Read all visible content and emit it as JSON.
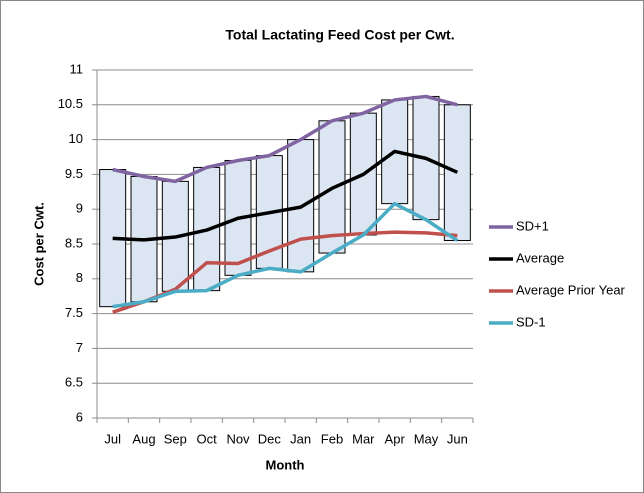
{
  "chart_data": {
    "type": "line-band",
    "title": "Total Lactating Feed Cost per Cwt.",
    "x_label": "Month",
    "y_label": "Cost per Cwt.",
    "categories": [
      "Jul",
      "Aug",
      "Sep",
      "Oct",
      "Nov",
      "Dec",
      "Jan",
      "Feb",
      "Mar",
      "Apr",
      "May",
      "Jun"
    ],
    "series": [
      {
        "name": "SD+1",
        "color": "#8064a2",
        "values": [
          9.57,
          9.47,
          9.4,
          9.6,
          9.7,
          9.77,
          10.0,
          10.27,
          10.38,
          10.57,
          10.62,
          10.5
        ]
      },
      {
        "name": "Average",
        "color": "#000000",
        "values": [
          8.58,
          8.56,
          8.6,
          8.7,
          8.87,
          8.95,
          9.03,
          9.3,
          9.5,
          9.83,
          9.73,
          9.53
        ]
      },
      {
        "name": "Average Prior Year",
        "color": "#c0504d",
        "values": [
          7.52,
          7.67,
          7.85,
          8.23,
          8.22,
          8.4,
          8.57,
          8.62,
          8.65,
          8.67,
          8.66,
          8.62
        ]
      },
      {
        "name": "SD-1",
        "color": "#4bacc6",
        "values": [
          7.6,
          7.67,
          7.82,
          7.83,
          8.05,
          8.15,
          8.1,
          8.37,
          8.63,
          9.08,
          8.85,
          8.55
        ]
      }
    ],
    "band_color": "#dce6f2",
    "ylim": [
      6,
      11
    ],
    "yticks": [
      6,
      6.5,
      7,
      7.5,
      8,
      8.5,
      9,
      9.5,
      10,
      10.5,
      11
    ],
    "grid": true,
    "legend": "right"
  }
}
